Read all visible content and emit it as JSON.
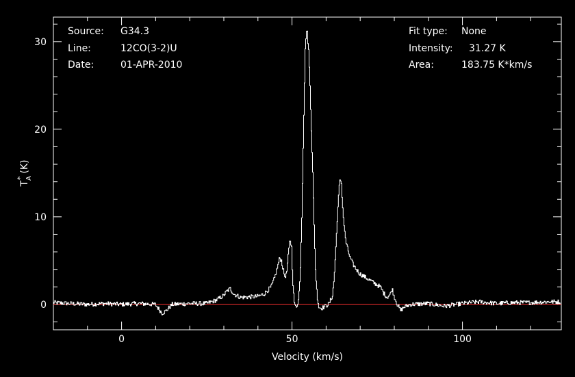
{
  "header": {
    "source_label": "Source:",
    "source_value": "G34.3",
    "line_label": "Line:",
    "line_value": "12CO(3-2)U",
    "date_label": "Date:",
    "date_value": "01-APR-2010",
    "fit_type_label": "Fit type:",
    "fit_type_value": "None",
    "intensity_label": "Intensity:",
    "intensity_value": "31.27 K",
    "area_label": "Area:",
    "area_value": "183.75 K*km/s"
  },
  "chart_data": {
    "type": "line",
    "xlabel": "Velocity (km/s)",
    "ylabel_main": "T",
    "ylabel_sup": "*",
    "ylabel_sub": "A",
    "ylabel_unit": "(K)",
    "xlim": [
      -20,
      129
    ],
    "ylim": [
      -2.9,
      32.8
    ],
    "xticks": [
      0,
      50,
      100
    ],
    "yticks": [
      0,
      10,
      20,
      30
    ],
    "grid": false,
    "colors": {
      "line": "#ffffff",
      "baseline": "#ff3030",
      "axes": "#ffffff",
      "background": "#000000"
    },
    "baseline_y": 0,
    "series": [
      {
        "values_x": [
          -20,
          -15,
          -10,
          -5,
          0,
          5,
          10,
          11,
          12,
          13,
          15,
          20,
          25,
          28,
          30,
          31,
          32,
          33,
          35,
          40,
          42,
          44,
          45,
          46,
          46.5,
          47,
          47.5,
          48,
          48.5,
          49,
          49.5,
          50,
          50.3,
          50.7,
          51,
          51.5,
          52,
          52.5,
          53,
          53.5,
          54,
          54.3,
          54.6,
          55,
          55.4,
          55.8,
          56.2,
          56.6,
          57,
          57.5,
          58,
          58.5,
          59,
          60,
          61,
          62,
          62.5,
          63,
          63.5,
          64,
          64.3,
          64.6,
          65,
          65.5,
          66,
          67,
          68,
          69,
          70,
          72,
          74,
          76,
          77,
          78,
          79,
          79.5,
          80,
          81,
          82,
          83,
          85,
          90,
          95,
          100,
          105,
          110,
          115,
          120,
          125,
          129
        ],
        "values_y": [
          0.2,
          0.1,
          0.0,
          0.1,
          0.0,
          0.1,
          0.0,
          -0.5,
          -1.0,
          -0.8,
          0.0,
          0.1,
          0.1,
          0.5,
          1.0,
          1.5,
          1.8,
          1.2,
          0.8,
          0.9,
          1.2,
          2.0,
          3.0,
          4.5,
          5.3,
          5.0,
          4.0,
          3.2,
          3.4,
          5.5,
          7.5,
          6.5,
          3.0,
          0.5,
          -0.2,
          -0.2,
          0.5,
          3.0,
          10.0,
          20.0,
          29.0,
          31.27,
          31.0,
          29.0,
          25.0,
          20.0,
          15.0,
          9.0,
          4.0,
          1.0,
          -0.3,
          -0.4,
          -0.4,
          -0.2,
          0.1,
          1.0,
          3.0,
          6.5,
          10.5,
          13.5,
          14.3,
          13.8,
          11.0,
          8.5,
          7.0,
          5.5,
          4.6,
          4.0,
          3.5,
          3.0,
          2.5,
          2.0,
          1.3,
          0.8,
          1.2,
          1.8,
          1.0,
          0.0,
          -0.7,
          -0.3,
          0.0,
          0.1,
          -0.2,
          0.1,
          0.3,
          0.1,
          0.2,
          0.2,
          0.3,
          0.3
        ]
      }
    ]
  }
}
